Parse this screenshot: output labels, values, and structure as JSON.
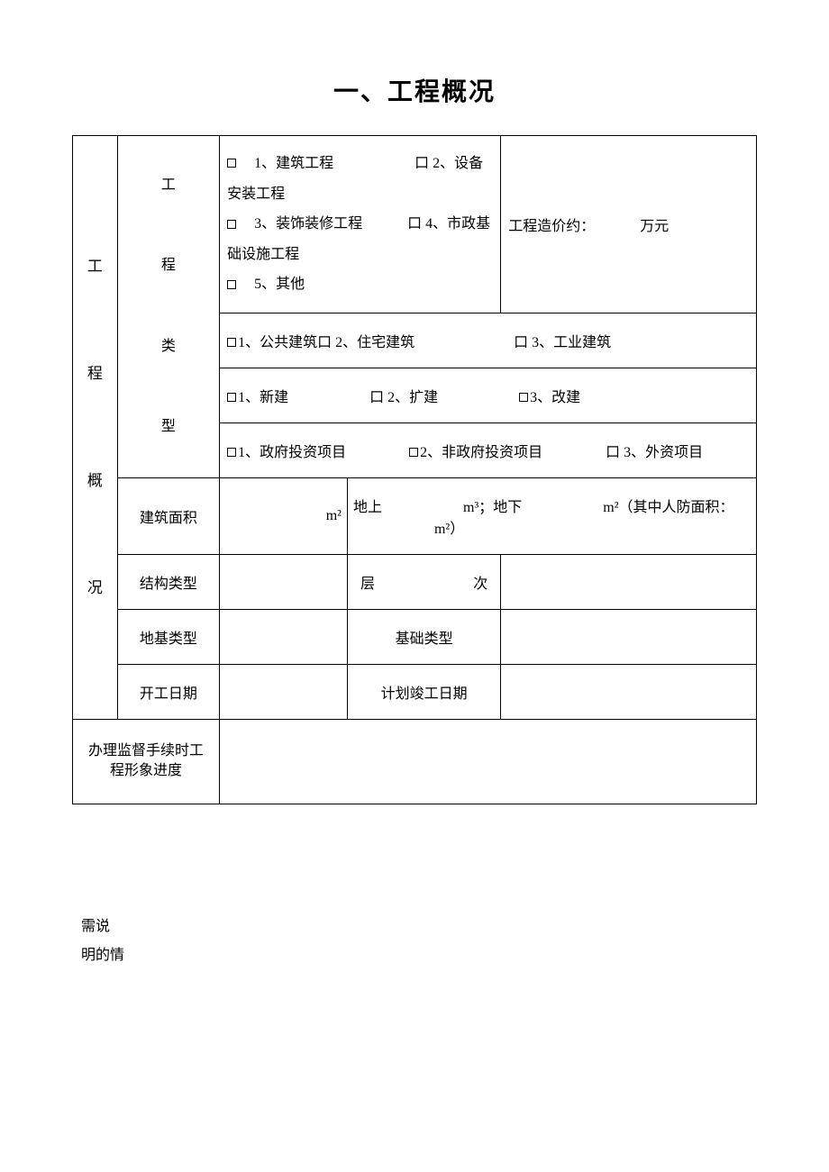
{
  "title": "一、工程概况",
  "sideLabel": "工\n\n程\n\n概\n\n况",
  "categoryLabel": "工\n\n程\n\n类\n\n型",
  "row1": {
    "opt1": "1、建筑工程",
    "opt2": "口 2、设备安装工程",
    "opt3": "3、装饰装修工程",
    "opt4": "口 4、市政基础设施工程",
    "opt5": "5、其他"
  },
  "costLabel": "工程造价约：",
  "costUnit": "万元",
  "row2": {
    "opt1": "1、公共建筑",
    "opt2": "口 2、住宅建筑",
    "opt3": "口 3、工业建筑"
  },
  "row3": {
    "opt1": "1、新建",
    "opt2": "口 2、扩建",
    "opt3": "3、改建"
  },
  "row4": {
    "opt1": "1、政府投资项目",
    "opt2": "2、非政府投资项目",
    "opt3": "口 3、外资项目"
  },
  "areaLabel": "建筑面积",
  "areaUnit": "m²",
  "areaDetail": {
    "above": "地上",
    "aboveUnit": "m³；",
    "below": "地下",
    "belowUnit": "m²",
    "defense": "（其中人防面积：",
    "defenseUnit": "m²）"
  },
  "structLabel": "结构类型",
  "floorLabel": "层",
  "floorLabel2": "次",
  "foundLabel": "地基类型",
  "baseLabel": "基础类型",
  "startLabel": "开工日期",
  "planLabel": "计划竣工日期",
  "footerLabel": "办理监督手续时工程形象进度",
  "notes1": "需说",
  "notes2": "明的情"
}
